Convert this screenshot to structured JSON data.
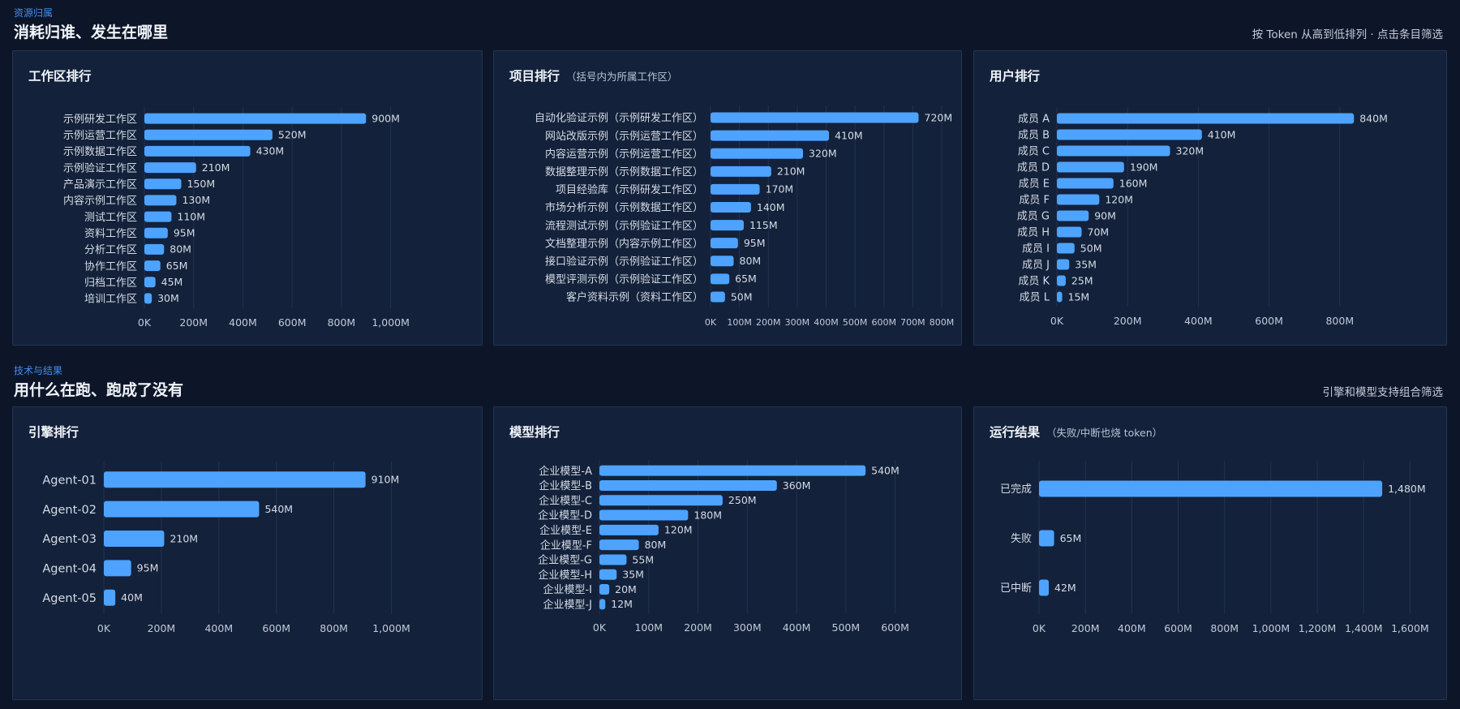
{
  "section1": {
    "tag": "资源归属",
    "title": "消耗归谁、发生在哪里",
    "note": "按 Token 从高到低排列 · 点击条目筛选"
  },
  "section2": {
    "tag": "技术与结果",
    "title": "用什么在跑、跑成了没有",
    "note": "引擎和模型支持组合筛选"
  },
  "colors": {
    "bar": "#4da3ff",
    "grid": "#223352",
    "label": "#d5dbe6",
    "tick": "#c2cad8"
  },
  "panels": {
    "workspace": {
      "title": "工作区排行",
      "subtitle": ""
    },
    "project": {
      "title": "项目排行",
      "subtitle": "（括号内为所属工作区）"
    },
    "user": {
      "title": "用户排行",
      "subtitle": ""
    },
    "engine": {
      "title": "引擎排行",
      "subtitle": ""
    },
    "model": {
      "title": "模型排行",
      "subtitle": ""
    },
    "result": {
      "title": "运行结果",
      "subtitle": "（失败/中断也烧 token）"
    }
  },
  "chart_data": [
    {
      "id": "workspace",
      "type": "bar",
      "orientation": "horizontal",
      "title": "工作区排行",
      "categories": [
        "示例研发工作区",
        "示例运营工作区",
        "示例数据工作区",
        "示例验证工作区",
        "产品演示工作区",
        "内容示例工作区",
        "测试工作区",
        "资料工作区",
        "分析工作区",
        "协作工作区",
        "归档工作区",
        "培训工作区"
      ],
      "values": [
        900,
        520,
        430,
        210,
        150,
        130,
        110,
        95,
        80,
        65,
        45,
        30
      ],
      "value_labels": [
        "900M",
        "520M",
        "430M",
        "210M",
        "150M",
        "130M",
        "110M",
        "95M",
        "80M",
        "65M",
        "45M",
        "30M"
      ],
      "unit": "M",
      "xlim": [
        0,
        1100
      ],
      "xticks": [
        0,
        200,
        400,
        600,
        800,
        1000
      ],
      "xtick_labels": [
        "0K",
        "200M",
        "400M",
        "600M",
        "800M",
        "1,000M"
      ],
      "grid": true
    },
    {
      "id": "project",
      "type": "bar",
      "orientation": "horizontal",
      "title": "项目排行",
      "categories": [
        "自动化验证示例（示例研发工作区）",
        "网站改版示例（示例运营工作区）",
        "内容运营示例（示例运营工作区）",
        "数据整理示例（示例数据工作区）",
        "项目经验库（示例研发工作区）",
        "市场分析示例（示例数据工作区）",
        "流程测试示例（示例验证工作区）",
        "文档整理示例（内容示例工作区）",
        "接口验证示例（示例验证工作区）",
        "模型评测示例（示例验证工作区）",
        "客户资料示例（资料工作区）"
      ],
      "values": [
        720,
        410,
        320,
        210,
        170,
        140,
        115,
        95,
        80,
        65,
        50
      ],
      "value_labels": [
        "720M",
        "410M",
        "320M",
        "210M",
        "170M",
        "140M",
        "115M",
        "95M",
        "80M",
        "65M",
        "50M"
      ],
      "unit": "M",
      "xlim": [
        0,
        800
      ],
      "xticks": [
        0,
        100,
        200,
        300,
        400,
        500,
        600,
        700,
        800
      ],
      "xtick_labels": [
        "0K",
        "100M",
        "200M",
        "300M",
        "400M",
        "500M",
        "600M",
        "700M",
        "800M"
      ],
      "grid": true
    },
    {
      "id": "user",
      "type": "bar",
      "orientation": "horizontal",
      "title": "用户排行",
      "categories": [
        "成员 A",
        "成员 B",
        "成员 C",
        "成员 D",
        "成员 E",
        "成员 F",
        "成员 G",
        "成员 H",
        "成员 I",
        "成员 J",
        "成员 K",
        "成员 L"
      ],
      "values": [
        840,
        410,
        320,
        190,
        160,
        120,
        90,
        70,
        50,
        35,
        25,
        15
      ],
      "value_labels": [
        "840M",
        "410M",
        "320M",
        "190M",
        "160M",
        "120M",
        "90M",
        "70M",
        "50M",
        "35M",
        "25M",
        "15M"
      ],
      "unit": "M",
      "xlim": [
        0,
        1000
      ],
      "xticks": [
        0,
        200,
        400,
        600,
        800
      ],
      "xtick_labels": [
        "0K",
        "200M",
        "400M",
        "600M",
        "800M"
      ],
      "grid": true
    },
    {
      "id": "engine",
      "type": "bar",
      "orientation": "horizontal",
      "title": "引擎排行",
      "categories": [
        "Agent-01",
        "Agent-02",
        "Agent-03",
        "Agent-04",
        "Agent-05"
      ],
      "values": [
        910,
        540,
        210,
        95,
        40
      ],
      "value_labels": [
        "910M",
        "540M",
        "210M",
        "95M",
        "40M"
      ],
      "unit": "M",
      "xlim": [
        0,
        1100
      ],
      "xticks": [
        0,
        200,
        400,
        600,
        800,
        1000
      ],
      "xtick_labels": [
        "0K",
        "200M",
        "400M",
        "600M",
        "800M",
        "1,000M"
      ],
      "grid": true
    },
    {
      "id": "model",
      "type": "bar",
      "orientation": "horizontal",
      "title": "模型排行",
      "categories": [
        "企业模型-A",
        "企业模型-B",
        "企业模型-C",
        "企业模型-D",
        "企业模型-E",
        "企业模型-F",
        "企业模型-G",
        "企业模型-H",
        "企业模型-I",
        "企业模型-J"
      ],
      "values": [
        540,
        360,
        250,
        180,
        120,
        80,
        55,
        35,
        20,
        12
      ],
      "value_labels": [
        "540M",
        "360M",
        "250M",
        "180M",
        "120M",
        "80M",
        "55M",
        "35M",
        "20M",
        "12M"
      ],
      "unit": "M",
      "xlim": [
        0,
        650
      ],
      "xticks": [
        0,
        100,
        200,
        300,
        400,
        500,
        600
      ],
      "xtick_labels": [
        "0K",
        "100M",
        "200M",
        "300M",
        "400M",
        "500M",
        "600M"
      ],
      "grid": true
    },
    {
      "id": "result",
      "type": "bar",
      "orientation": "horizontal",
      "title": "运行结果",
      "categories": [
        "已完成",
        "失败",
        "已中断"
      ],
      "values": [
        1480,
        65,
        42
      ],
      "value_labels": [
        "1,480M",
        "65M",
        "42M"
      ],
      "unit": "M",
      "xlim": [
        0,
        1700
      ],
      "xticks": [
        0,
        200,
        400,
        600,
        800,
        1000,
        1200,
        1400,
        1600
      ],
      "xtick_labels": [
        "0K",
        "200M",
        "400M",
        "600M",
        "800M",
        "1,000M",
        "1,200M",
        "1,400M",
        "1,600M"
      ],
      "grid": true
    }
  ]
}
